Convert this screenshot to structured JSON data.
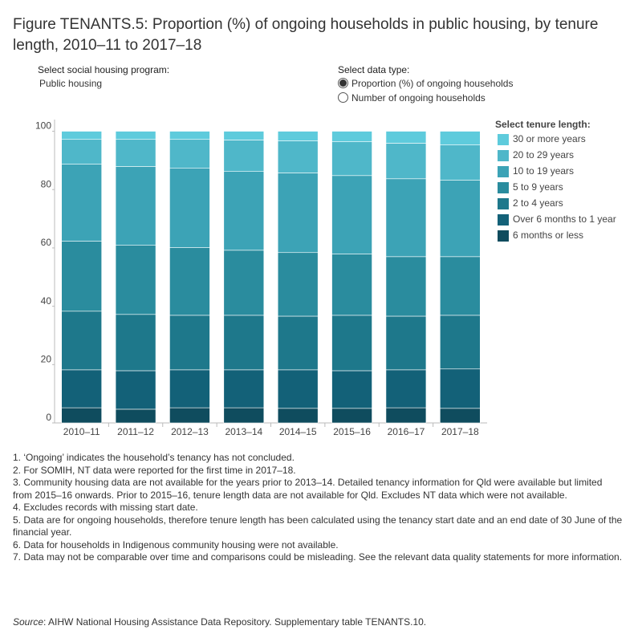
{
  "title": "Figure TENANTS.5: Proportion (%) of ongoing households in public housing, by tenure length, 2010–11 to 2017–18",
  "controls": {
    "program_label": "Select social housing program:",
    "program_value": "Public housing",
    "data_type_label": "Select data type:",
    "data_type_options": [
      "Proportion (%) of ongoing households",
      "Number of ongoing households"
    ]
  },
  "chart_data": {
    "type": "stacked-bar",
    "legend_title": "Select tenure length:",
    "legend_position": "right",
    "grid": false,
    "categories": [
      "2010–11",
      "2011–12",
      "2012–13",
      "2013–14",
      "2014–15",
      "2015–16",
      "2016–17",
      "2017–18"
    ],
    "ylim": [
      0,
      104
    ],
    "yticks": [
      0,
      20,
      40,
      60,
      80,
      100
    ],
    "series": [
      {
        "name": "6 months or less",
        "color": "#0f4c5e",
        "values": [
          5.2,
          4.7,
          5.2,
          5.2,
          5.0,
          5.0,
          5.2,
          5.0
        ]
      },
      {
        "name": "Over 6 months to 1 year",
        "color": "#136178",
        "values": [
          13.0,
          13.2,
          13.0,
          13.0,
          13.2,
          12.9,
          13.0,
          13.5
        ]
      },
      {
        "name": "2 to 4 years",
        "color": "#1e788b",
        "values": [
          20.1,
          19.3,
          18.7,
          18.7,
          18.4,
          19.0,
          18.4,
          18.4
        ]
      },
      {
        "name": "5 to 9 years",
        "color": "#2a8c9e",
        "values": [
          24.0,
          23.7,
          23.2,
          22.3,
          21.8,
          21.0,
          20.4,
          20.1
        ]
      },
      {
        "name": "10 to 19 years",
        "color": "#3ca3b6",
        "values": [
          26.4,
          27.0,
          27.2,
          27.0,
          27.3,
          26.9,
          26.7,
          26.2
        ]
      },
      {
        "name": "20 to 29 years",
        "color": "#4fb7c9",
        "values": [
          8.5,
          9.3,
          9.9,
          10.8,
          11.0,
          11.6,
          12.2,
          12.1
        ]
      },
      {
        "name": "30 or more years",
        "color": "#5ecbdc",
        "values": [
          2.8,
          2.8,
          2.8,
          3.0,
          3.3,
          3.6,
          4.1,
          4.7
        ]
      }
    ]
  },
  "notes": [
    "1. ‘Ongoing’ indicates the household’s tenancy has not concluded.",
    "2. For SOMIH, NT data were reported for the first time in 2017–18.",
    "3. Community housing data are not available for the years prior to 2013–14. Detailed tenancy information for Qld were available but limited from 2015–16 onwards. Prior to 2015–16, tenure length data are not available for Qld. Excludes NT data which were not available.",
    "4. Excludes records with missing start date.",
    "5. Data are for ongoing households, therefore tenure length has been calculated using the tenancy start date and an end date of 30 June of the financial year.",
    "6. Data for households in Indigenous community housing were not available.",
    "7. Data may not be comparable over time and comparisons could be misleading. See the relevant data quality statements for more information."
  ],
  "source_label": "Source",
  "source_text": ": AIHW National Housing Assistance Data Repository. Supplementary table TENANTS.10."
}
